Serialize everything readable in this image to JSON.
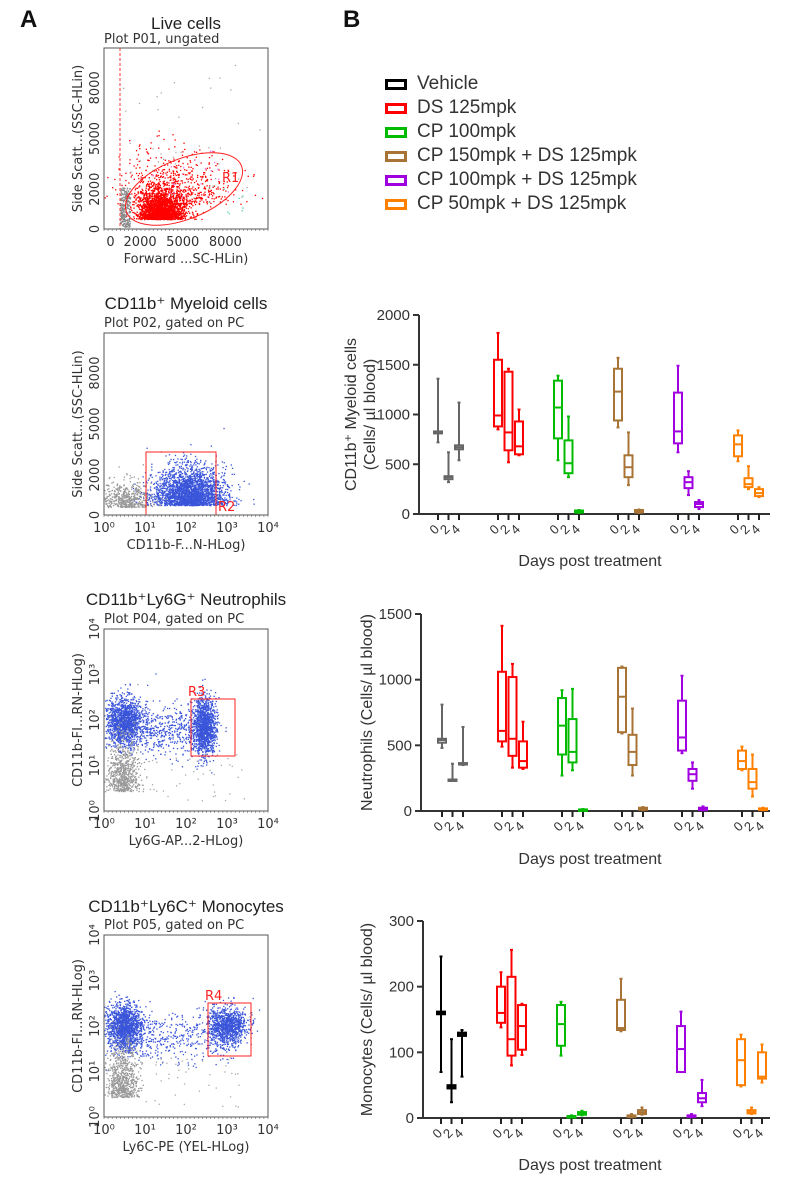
{
  "panels": {
    "a_label": "A",
    "b_label": "B"
  },
  "flow_plots": [
    {
      "title": "Live cells",
      "subtitle": "Plot P01, ungated",
      "xlabel": "Forward ...SC-HLin)",
      "ylabel": "Side Scatt...(SSC-HLin)",
      "x_scale": "linear",
      "y_scale": "linear",
      "xticks": [
        "0",
        "2000",
        "5000",
        "8000"
      ],
      "yticks": [
        "0",
        "2000",
        "5000",
        "8000"
      ],
      "gate": {
        "name": "R1",
        "shape": "ellipse",
        "color": "#ff2020"
      },
      "population_color": "#ff0000"
    },
    {
      "title": "CD11b⁺ Myeloid cells",
      "subtitle": "Plot P02, gated on PC",
      "xlabel": "CD11b-F...N-HLog)",
      "ylabel": "Side Scatt...(SSC-HLin)",
      "x_scale": "log",
      "y_scale": "linear",
      "xticks": [
        "10⁰",
        "10¹",
        "10²",
        "10³",
        "10⁴"
      ],
      "yticks": [
        "0",
        "2000",
        "5000",
        "8000"
      ],
      "gate": {
        "name": "R2",
        "shape": "rectangle",
        "color": "#ff2020"
      },
      "population_color": "#3a55d9"
    },
    {
      "title": "CD11b⁺Ly6G⁺ Neutrophils",
      "subtitle": "Plot P04, gated on PC",
      "xlabel": "Ly6G-AP...2-HLog)",
      "ylabel": "CD11b-FI...RN-HLog)",
      "x_scale": "log",
      "y_scale": "log",
      "xticks": [
        "10⁰",
        "10¹",
        "10²",
        "10³",
        "10⁴"
      ],
      "yticks": [
        "10⁰",
        "10¹",
        "10²",
        "10³",
        "10⁴"
      ],
      "gate": {
        "name": "R3",
        "shape": "rectangle",
        "color": "#ff2020"
      },
      "population_color": "#3a55d9"
    },
    {
      "title": "CD11b⁺Ly6C⁺ Monocytes",
      "subtitle": "Plot P05, gated on PC",
      "xlabel": "Ly6C-PE (YEL-HLog)",
      "ylabel": "CD11b-FI...RN-HLog)",
      "x_scale": "log",
      "y_scale": "log",
      "xticks": [
        "10⁰",
        "10¹",
        "10²",
        "10³",
        "10⁴"
      ],
      "yticks": [
        "10⁰",
        "10¹",
        "10²",
        "10³",
        "10⁴"
      ],
      "gate": {
        "name": "R4",
        "shape": "rectangle",
        "color": "#ff2020"
      },
      "population_color": "#3a55d9"
    }
  ],
  "legend": [
    {
      "label": "Vehicle",
      "color": "#000000"
    },
    {
      "label": "DS 125mpk",
      "color": "#ff0000"
    },
    {
      "label": "CP 100mpk",
      "color": "#00bb00"
    },
    {
      "label": "CP 150mpk + DS 125mpk",
      "color": "#a87436"
    },
    {
      "label": "CP 100mpk + DS 125mpk",
      "color": "#a000e0"
    },
    {
      "label": "CP 50mpk + DS 125mpk",
      "color": "#ff8000"
    }
  ],
  "chart_data": [
    {
      "type": "box",
      "ylabel": "CD11b⁺ Myeloid cells (Cells/ µl blood)",
      "ylabel_lines": [
        "CD11b⁺ Myeloid cells",
        "(Cells/ µl blood)"
      ],
      "xlabel": "Days post treatment",
      "ylim": [
        0,
        2000
      ],
      "yticks": [
        0,
        500,
        1000,
        1500,
        2000
      ],
      "days": [
        "0",
        "2",
        "4"
      ],
      "vehicle_color": "#666666",
      "groups": [
        {
          "name": "Vehicle",
          "boxes": [
            [
              720,
              810,
              820,
              830,
              1360
            ],
            [
              320,
              350,
              370,
              380,
              620
            ],
            [
              540,
              650,
              670,
              690,
              1120
            ]
          ]
        },
        {
          "name": "DS 125mpk",
          "boxes": [
            [
              850,
              880,
              990,
              1550,
              1820
            ],
            [
              520,
              640,
              820,
              1430,
              1460
            ],
            [
              590,
              600,
              680,
              930,
              1050
            ]
          ]
        },
        {
          "name": "CP 100mpk",
          "boxes": [
            [
              540,
              760,
              1070,
              1340,
              1390
            ],
            [
              370,
              410,
              510,
              740,
              980
            ],
            [
              10,
              15,
              25,
              35,
              40
            ]
          ]
        },
        {
          "name": "CP 150mpk + DS 125mpk",
          "boxes": [
            [
              870,
              940,
              1230,
              1460,
              1570
            ],
            [
              290,
              370,
              470,
              590,
              820
            ],
            [
              10,
              15,
              25,
              40,
              45
            ]
          ]
        },
        {
          "name": "CP 100mpk + DS 125mpk",
          "boxes": [
            [
              620,
              710,
              830,
              1220,
              1490
            ],
            [
              190,
              260,
              320,
              370,
              430
            ],
            [
              50,
              70,
              100,
              120,
              140
            ]
          ]
        },
        {
          "name": "CP 50mpk + DS 125mpk",
          "boxes": [
            [
              530,
              580,
              700,
              790,
              840
            ],
            [
              250,
              270,
              300,
              360,
              480
            ],
            [
              170,
              180,
              210,
              250,
              270
            ]
          ]
        }
      ]
    },
    {
      "type": "box",
      "ylabel": "Neutrophils (Cells/ µl blood)",
      "ylabel_lines": [
        "Neutrophils (Cells/ µl blood)"
      ],
      "xlabel": "Days post treatment",
      "ylim": [
        0,
        1500
      ],
      "yticks": [
        0,
        500,
        1000,
        1500
      ],
      "days": [
        "0",
        "2",
        "4"
      ],
      "vehicle_color": "#666666",
      "groups": [
        {
          "name": "Vehicle",
          "boxes": [
            [
              480,
              520,
              540,
              550,
              810
            ],
            [
              230,
              230,
              235,
              240,
              360
            ],
            [
              350,
              355,
              360,
              365,
              640
            ]
          ]
        },
        {
          "name": "DS 125mpk",
          "boxes": [
            [
              490,
              530,
              610,
              1060,
              1410
            ],
            [
              330,
              420,
              550,
              1020,
              1120
            ],
            [
              320,
              330,
              380,
              530,
              680
            ]
          ]
        },
        {
          "name": "CP 100mpk",
          "boxes": [
            [
              270,
              430,
              650,
              860,
              920
            ],
            [
              310,
              370,
              450,
              700,
              930
            ],
            [
              5,
              8,
              10,
              12,
              15
            ]
          ]
        },
        {
          "name": "CP 150mpk + DS 125mpk",
          "boxes": [
            [
              590,
              600,
              870,
              1090,
              1100
            ],
            [
              270,
              350,
              450,
              580,
              780
            ],
            [
              5,
              10,
              15,
              25,
              30
            ]
          ]
        },
        {
          "name": "CP 100mpk + DS 125mpk",
          "boxes": [
            [
              440,
              460,
              560,
              840,
              1030
            ],
            [
              170,
              230,
              280,
              320,
              370
            ],
            [
              5,
              8,
              15,
              25,
              35
            ]
          ]
        },
        {
          "name": "CP 50mpk + DS 125mpk",
          "boxes": [
            [
              310,
              320,
              380,
              460,
              490
            ],
            [
              110,
              170,
              220,
              320,
              430
            ],
            [
              5,
              8,
              10,
              20,
              25
            ]
          ]
        }
      ]
    },
    {
      "type": "box",
      "ylabel": "Monocytes (Cells/ µl blood)",
      "ylabel_lines": [
        "Monocytes (Cells/ µl blood)"
      ],
      "xlabel": "Days post treatment",
      "ylim": [
        0,
        300
      ],
      "yticks": [
        0,
        100,
        200,
        300
      ],
      "days": [
        "0",
        "2",
        "4"
      ],
      "vehicle_color": "#000000",
      "groups": [
        {
          "name": "Vehicle",
          "boxes": [
            [
              70,
              158,
              160,
              162,
              246
            ],
            [
              24,
              45,
              48,
              50,
              120
            ],
            [
              63,
              125,
              128,
              130,
              134
            ]
          ]
        },
        {
          "name": "DS 125mpk",
          "boxes": [
            [
              138,
              145,
              160,
              200,
              222
            ],
            [
              80,
              95,
              120,
              215,
              256
            ],
            [
              96,
              104,
              140,
              172,
              174
            ]
          ]
        },
        {
          "name": "CP 100mpk",
          "boxes": [
            [
              95,
              110,
              143,
              172,
              177
            ],
            [
              1,
              1,
              2,
              3,
              4
            ],
            [
              4,
              5,
              7,
              9,
              11
            ]
          ]
        },
        {
          "name": "CP 150mpk + DS 125mpk",
          "boxes": [
            [
              132,
              134,
              137,
              180,
              212
            ],
            [
              1,
              2,
              3,
              4,
              6
            ],
            [
              5,
              6,
              9,
              12,
              16
            ]
          ]
        },
        {
          "name": "CP 100mpk + DS 125mpk",
          "boxes": [
            [
              70,
              70,
              105,
              140,
              162
            ],
            [
              1,
              2,
              3,
              4,
              6
            ],
            [
              18,
              24,
              30,
              38,
              58
            ]
          ]
        },
        {
          "name": "CP 50mpk + DS 125mpk",
          "boxes": [
            [
              48,
              50,
              88,
              120,
              127
            ],
            [
              6,
              7,
              9,
              12,
              16
            ],
            [
              54,
              60,
              63,
              100,
              112
            ]
          ]
        }
      ]
    }
  ]
}
